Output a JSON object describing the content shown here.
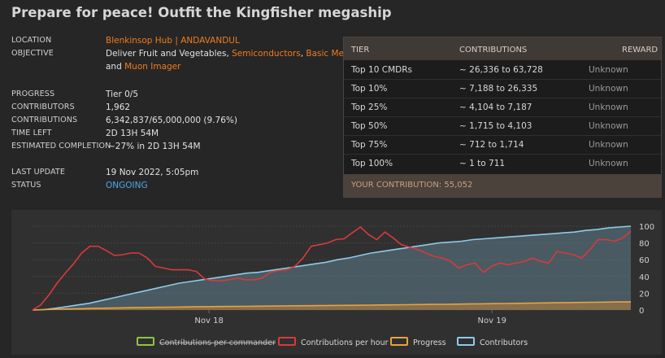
{
  "title": "Prepare for peace! Outfit the Kingfisher megaship",
  "info": {
    "location_label": "LOCATION",
    "location_value": "Blenkinsop Hub | ANDAVANDUL",
    "objective_label": "OBJECTIVE",
    "objective_prefix": "Deliver",
    "objective_items": [
      "Fruit and Vegetables",
      "Semiconductors",
      "Basic Medicines",
      "Muon Imager"
    ],
    "objective_sep1": ",",
    "objective_sep2": ",",
    "objective_and": "and",
    "progress_label": "PROGRESS",
    "progress_value": "Tier 0/5",
    "contributors_label": "CONTRIBUTORS",
    "contributors_value": "1,962",
    "contributions_label": "CONTRIBUTIONS",
    "contributions_value": "6,342,837/65,000,000 (9.76%)",
    "time_left_label": "TIME LEFT",
    "time_left_value": "2D 13H 54M",
    "estimated_label": "ESTIMATED COMPLETION",
    "estimated_value": "~27% in 2D 13H 54M",
    "last_update_label": "LAST UPDATE",
    "last_update_value": "19 Nov 2022, 5:05pm",
    "status_label": "STATUS",
    "status_value": "ONGOING",
    "status_color": "#4ea6ea"
  },
  "tiers": {
    "headers": {
      "tier": "TIER",
      "contributions": "CONTRIBUTIONS",
      "reward": "REWARD"
    },
    "rows": [
      {
        "tier": "Top 10 CMDRs",
        "contributions": "~ 26,336 to 63,728",
        "reward": "Unknown"
      },
      {
        "tier": "Top 10%",
        "contributions": "~ 7,188 to 26,335",
        "reward": "Unknown"
      },
      {
        "tier": "Top 25%",
        "contributions": "~ 4,104 to 7,187",
        "reward": "Unknown"
      },
      {
        "tier": "Top 50%",
        "contributions": "~ 1,715 to 4,103",
        "reward": "Unknown"
      },
      {
        "tier": "Top 75%",
        "contributions": "~ 712 to 1,714",
        "reward": "Unknown"
      },
      {
        "tier": "Top 100%",
        "contributions": "~ 1 to 711",
        "reward": "Unknown"
      }
    ],
    "your_contribution": "YOUR CONTRIBUTION: 55,052"
  },
  "chart_data": {
    "type": "line",
    "title": "",
    "xlabel": "",
    "ylabel": "",
    "x_ticks": [
      "Nov 18",
      "Nov 19"
    ],
    "ylim": [
      0,
      100
    ],
    "y_ticks": [
      0,
      20,
      40,
      60,
      80,
      100
    ],
    "grid": true,
    "legend_placement": "bottom",
    "series": [
      {
        "name": "Contributions per commander",
        "color": "#8dc63f",
        "hidden": true,
        "values": []
      },
      {
        "name": "Contributions per hour",
        "color": "#d93a3a",
        "values": [
          0,
          6,
          18,
          32,
          44,
          55,
          68,
          76,
          76,
          71,
          65,
          66,
          68,
          68,
          62,
          52,
          50,
          48,
          48,
          48,
          46,
          37,
          35,
          35,
          36,
          38,
          36,
          36,
          38,
          45,
          47,
          48,
          52,
          62,
          76,
          78,
          80,
          84,
          85,
          92,
          99,
          90,
          84,
          93,
          86,
          78,
          75,
          72,
          68,
          64,
          62,
          58,
          50,
          54,
          56,
          45,
          52,
          56,
          54,
          56,
          58,
          62,
          58,
          56,
          70,
          68,
          66,
          62,
          72,
          84,
          84,
          82,
          86,
          94
        ]
      },
      {
        "name": "Progress",
        "color": "#e8a33c",
        "values": [
          0,
          0.5,
          1,
          1.3,
          1.6,
          2,
          2.2,
          2.5,
          2.8,
          3,
          3.2,
          3.4,
          3.6,
          3.8,
          4,
          4.2,
          4.3,
          4.4,
          4.6,
          4.7,
          4.9,
          5,
          5.1,
          5.2,
          5.4,
          5.5,
          5.6,
          5.8,
          6,
          6.1,
          6.3,
          6.5,
          6.7,
          6.8,
          7,
          7.2,
          7.4,
          7.6,
          7.8,
          8,
          8.2,
          8.4,
          8.6,
          8.8,
          9,
          9.2,
          9.4,
          9.6,
          9.76
        ]
      },
      {
        "name": "Contributors",
        "color": "#8ecbe8",
        "values": [
          0,
          0.5,
          2,
          4,
          6,
          8,
          11,
          14,
          17,
          20,
          23,
          26,
          29,
          32,
          34,
          36,
          38,
          40,
          42,
          44,
          45,
          47,
          49,
          51,
          53,
          55,
          57,
          60,
          62,
          65,
          68,
          70,
          72,
          74,
          76,
          78,
          80,
          81,
          82,
          84,
          85,
          86,
          87,
          88,
          89,
          90,
          91,
          92,
          93,
          95,
          96,
          98,
          99,
          100
        ]
      }
    ]
  },
  "legend": [
    "Contributions per commander",
    "Contributions per hour",
    "Progress",
    "Contributors"
  ]
}
